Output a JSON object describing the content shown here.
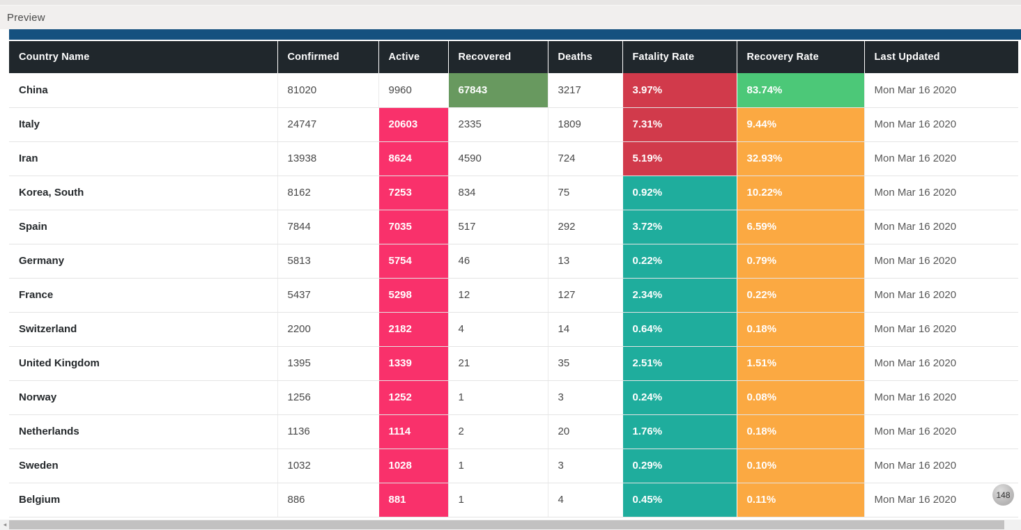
{
  "preview": {
    "label": "Preview"
  },
  "colors": {
    "accent_bar": "#15517F",
    "header_bg": "#20272C",
    "pink": "#F9316B",
    "sage_green": "#68995F",
    "bright_green": "#4CC878",
    "red": "#D13A4B",
    "teal": "#1FAD9D",
    "orange": "#FBA942"
  },
  "table": {
    "columns": [
      {
        "key": "country",
        "label": "Country Name"
      },
      {
        "key": "confirmed",
        "label": "Confirmed"
      },
      {
        "key": "active",
        "label": "Active"
      },
      {
        "key": "recovered",
        "label": "Recovered"
      },
      {
        "key": "deaths",
        "label": "Deaths"
      },
      {
        "key": "fatality",
        "label": "Fatality Rate"
      },
      {
        "key": "recovery",
        "label": "Recovery Rate"
      },
      {
        "key": "updated",
        "label": "Last Updated"
      }
    ],
    "rows": [
      {
        "country": "China",
        "confirmed": "81020",
        "active": "9960",
        "recovered": "67843",
        "deaths": "3217",
        "fatality": "3.97%",
        "recovery": "83.74%",
        "updated": "Mon Mar 16 2020",
        "cell_colors": {
          "recovered": "sage_green",
          "fatality": "red",
          "recovery": "bright_green"
        }
      },
      {
        "country": "Italy",
        "confirmed": "24747",
        "active": "20603",
        "recovered": "2335",
        "deaths": "1809",
        "fatality": "7.31%",
        "recovery": "9.44%",
        "updated": "Mon Mar 16 2020",
        "cell_colors": {
          "active": "pink",
          "fatality": "red",
          "recovery": "orange"
        }
      },
      {
        "country": "Iran",
        "confirmed": "13938",
        "active": "8624",
        "recovered": "4590",
        "deaths": "724",
        "fatality": "5.19%",
        "recovery": "32.93%",
        "updated": "Mon Mar 16 2020",
        "cell_colors": {
          "active": "pink",
          "fatality": "red",
          "recovery": "orange"
        }
      },
      {
        "country": "Korea, South",
        "confirmed": "8162",
        "active": "7253",
        "recovered": "834",
        "deaths": "75",
        "fatality": "0.92%",
        "recovery": "10.22%",
        "updated": "Mon Mar 16 2020",
        "cell_colors": {
          "active": "pink",
          "fatality": "teal",
          "recovery": "orange"
        }
      },
      {
        "country": "Spain",
        "confirmed": "7844",
        "active": "7035",
        "recovered": "517",
        "deaths": "292",
        "fatality": "3.72%",
        "recovery": "6.59%",
        "updated": "Mon Mar 16 2020",
        "cell_colors": {
          "active": "pink",
          "fatality": "teal",
          "recovery": "orange"
        }
      },
      {
        "country": "Germany",
        "confirmed": "5813",
        "active": "5754",
        "recovered": "46",
        "deaths": "13",
        "fatality": "0.22%",
        "recovery": "0.79%",
        "updated": "Mon Mar 16 2020",
        "cell_colors": {
          "active": "pink",
          "fatality": "teal",
          "recovery": "orange"
        }
      },
      {
        "country": "France",
        "confirmed": "5437",
        "active": "5298",
        "recovered": "12",
        "deaths": "127",
        "fatality": "2.34%",
        "recovery": "0.22%",
        "updated": "Mon Mar 16 2020",
        "cell_colors": {
          "active": "pink",
          "fatality": "teal",
          "recovery": "orange"
        }
      },
      {
        "country": "Switzerland",
        "confirmed": "2200",
        "active": "2182",
        "recovered": "4",
        "deaths": "14",
        "fatality": "0.64%",
        "recovery": "0.18%",
        "updated": "Mon Mar 16 2020",
        "cell_colors": {
          "active": "pink",
          "fatality": "teal",
          "recovery": "orange"
        }
      },
      {
        "country": "United Kingdom",
        "confirmed": "1395",
        "active": "1339",
        "recovered": "21",
        "deaths": "35",
        "fatality": "2.51%",
        "recovery": "1.51%",
        "updated": "Mon Mar 16 2020",
        "cell_colors": {
          "active": "pink",
          "fatality": "teal",
          "recovery": "orange"
        }
      },
      {
        "country": "Norway",
        "confirmed": "1256",
        "active": "1252",
        "recovered": "1",
        "deaths": "3",
        "fatality": "0.24%",
        "recovery": "0.08%",
        "updated": "Mon Mar 16 2020",
        "cell_colors": {
          "active": "pink",
          "fatality": "teal",
          "recovery": "orange"
        }
      },
      {
        "country": "Netherlands",
        "confirmed": "1136",
        "active": "1114",
        "recovered": "2",
        "deaths": "20",
        "fatality": "1.76%",
        "recovery": "0.18%",
        "updated": "Mon Mar 16 2020",
        "cell_colors": {
          "active": "pink",
          "fatality": "teal",
          "recovery": "orange"
        }
      },
      {
        "country": "Sweden",
        "confirmed": "1032",
        "active": "1028",
        "recovered": "1",
        "deaths": "3",
        "fatality": "0.29%",
        "recovery": "0.10%",
        "updated": "Mon Mar 16 2020",
        "cell_colors": {
          "active": "pink",
          "fatality": "teal",
          "recovery": "orange"
        }
      },
      {
        "country": "Belgium",
        "confirmed": "886",
        "active": "881",
        "recovered": "1",
        "deaths": "4",
        "fatality": "0.45%",
        "recovery": "0.11%",
        "updated": "Mon Mar 16 2020",
        "cell_colors": {
          "active": "pink",
          "fatality": "teal",
          "recovery": "orange"
        }
      }
    ]
  },
  "record_count_badge": "148",
  "scrollbar": {
    "left_arrow_icon": "◂"
  }
}
